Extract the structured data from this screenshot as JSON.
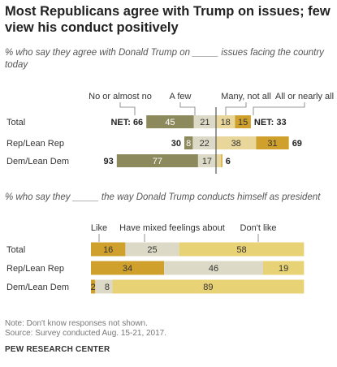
{
  "title": "Most Republicans agree with Trump on issues; few view his conduct positively",
  "chart_data": [
    {
      "type": "bar",
      "subtitle": "% who say they agree with Donald Trump on _____ issues facing the country today",
      "legend": [
        "No or almost no",
        "A few",
        "Many, not all",
        "All or nearly all"
      ],
      "categories": [
        "Total",
        "Rep/Lean Rep",
        "Dem/Lean Dem"
      ],
      "series": [
        {
          "name": "No or almost no",
          "values": [
            45,
            8,
            77
          ],
          "color": "#8c8a5c"
        },
        {
          "name": "A few",
          "values": [
            21,
            22,
            17
          ],
          "color": "#dcdac7"
        },
        {
          "name": "Many, not all",
          "values": [
            18,
            38,
            5
          ],
          "color": "#e8d69a"
        },
        {
          "name": "All or nearly all",
          "values": [
            15,
            31,
            1
          ],
          "color": "#cfa12c"
        }
      ],
      "value_labels": [
        [
          "45",
          "21",
          "18",
          "15"
        ],
        [
          "8",
          "22",
          "38",
          "31"
        ],
        [
          "77",
          "17",
          "",
          ""
        ]
      ],
      "net_left": [
        "NET: 66",
        "30",
        "93"
      ],
      "net_right": [
        "NET: 33",
        "69",
        "6"
      ],
      "layout": "diverging"
    },
    {
      "type": "bar",
      "subtitle": "% who say they _____ the way Donald Trump conducts  himself as president",
      "legend": [
        "Like",
        "Have mixed feelings about",
        "Don't like"
      ],
      "categories": [
        "Total",
        "Rep/Lean Rep",
        "Dem/Lean Dem"
      ],
      "series": [
        {
          "name": "Like",
          "values": [
            16,
            34,
            2
          ],
          "color": "#cfa12c"
        },
        {
          "name": "Have mixed feelings about",
          "values": [
            25,
            46,
            8
          ],
          "color": "#dcdac7"
        },
        {
          "name": "Don't like",
          "values": [
            58,
            19,
            89
          ],
          "color": "#e8d276"
        }
      ],
      "value_labels": [
        [
          "16",
          "25",
          "58"
        ],
        [
          "34",
          "46",
          "19"
        ],
        [
          "2",
          "8",
          "89"
        ]
      ],
      "layout": "stacked"
    }
  ],
  "note": "Note: Don't know responses not shown.",
  "source": "Source: Survey conducted Aug. 15-21, 2017.",
  "org": "PEW RESEARCH CENTER"
}
